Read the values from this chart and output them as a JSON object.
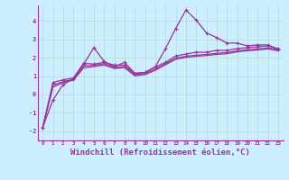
{
  "background_color": "#cceeff",
  "grid_color": "#aaddcc",
  "line_color": "#993399",
  "xlabel": "Windchill (Refroidissement éolien,°C)",
  "xlabel_fontsize": 6.5,
  "xtick_labels": [
    "0",
    "1",
    "2",
    "3",
    "4",
    "5",
    "6",
    "7",
    "8",
    "9",
    "10",
    "11",
    "12",
    "13",
    "14",
    "15",
    "16",
    "17",
    "18",
    "19",
    "20",
    "21",
    "22",
    "23"
  ],
  "ytick_vals": [
    -2,
    -1,
    0,
    1,
    2,
    3,
    4
  ],
  "ytick_labels": [
    "-2",
    "-1",
    "0",
    "1",
    "2",
    "3",
    "4"
  ],
  "ylim": [
    -2.5,
    4.85
  ],
  "xlim": [
    -0.5,
    23.5
  ],
  "series1": [
    [
      0,
      -1.8
    ],
    [
      1,
      -0.3
    ],
    [
      2,
      0.55
    ],
    [
      3,
      0.85
    ],
    [
      4,
      1.65
    ],
    [
      5,
      2.55
    ],
    [
      6,
      1.8
    ],
    [
      7,
      1.5
    ],
    [
      8,
      1.75
    ],
    [
      9,
      1.15
    ],
    [
      10,
      1.2
    ],
    [
      11,
      1.5
    ],
    [
      12,
      2.5
    ],
    [
      13,
      3.6
    ],
    [
      14,
      4.6
    ],
    [
      15,
      4.05
    ],
    [
      16,
      3.35
    ],
    [
      17,
      3.1
    ],
    [
      18,
      2.8
    ],
    [
      19,
      2.8
    ],
    [
      20,
      2.65
    ],
    [
      21,
      2.7
    ],
    [
      22,
      2.7
    ],
    [
      23,
      2.45
    ]
  ],
  "series2": [
    [
      0,
      -1.8
    ],
    [
      1,
      0.65
    ],
    [
      2,
      0.8
    ],
    [
      3,
      0.9
    ],
    [
      4,
      1.7
    ],
    [
      5,
      1.65
    ],
    [
      6,
      1.75
    ],
    [
      7,
      1.6
    ],
    [
      8,
      1.6
    ],
    [
      9,
      1.15
    ],
    [
      10,
      1.2
    ],
    [
      11,
      1.5
    ],
    [
      12,
      1.75
    ],
    [
      13,
      2.1
    ],
    [
      14,
      2.2
    ],
    [
      15,
      2.3
    ],
    [
      16,
      2.3
    ],
    [
      17,
      2.4
    ],
    [
      18,
      2.4
    ],
    [
      19,
      2.5
    ],
    [
      20,
      2.55
    ],
    [
      21,
      2.6
    ],
    [
      22,
      2.65
    ],
    [
      23,
      2.5
    ]
  ],
  "series3": [
    [
      0,
      -1.8
    ],
    [
      1,
      0.5
    ],
    [
      2,
      0.7
    ],
    [
      3,
      0.82
    ],
    [
      4,
      1.55
    ],
    [
      5,
      1.58
    ],
    [
      6,
      1.68
    ],
    [
      7,
      1.48
    ],
    [
      8,
      1.52
    ],
    [
      9,
      1.08
    ],
    [
      10,
      1.14
    ],
    [
      11,
      1.38
    ],
    [
      12,
      1.68
    ],
    [
      13,
      1.98
    ],
    [
      14,
      2.08
    ],
    [
      15,
      2.14
    ],
    [
      16,
      2.18
    ],
    [
      17,
      2.24
    ],
    [
      18,
      2.28
    ],
    [
      19,
      2.38
    ],
    [
      20,
      2.44
    ],
    [
      21,
      2.48
    ],
    [
      22,
      2.54
    ],
    [
      23,
      2.44
    ]
  ],
  "series4": [
    [
      0,
      -1.8
    ],
    [
      1,
      0.4
    ],
    [
      2,
      0.65
    ],
    [
      3,
      0.78
    ],
    [
      4,
      1.45
    ],
    [
      5,
      1.52
    ],
    [
      6,
      1.6
    ],
    [
      7,
      1.42
    ],
    [
      8,
      1.46
    ],
    [
      9,
      1.02
    ],
    [
      10,
      1.08
    ],
    [
      11,
      1.32
    ],
    [
      12,
      1.62
    ],
    [
      13,
      1.92
    ],
    [
      14,
      2.02
    ],
    [
      15,
      2.08
    ],
    [
      16,
      2.12
    ],
    [
      17,
      2.18
    ],
    [
      18,
      2.22
    ],
    [
      19,
      2.32
    ],
    [
      20,
      2.38
    ],
    [
      21,
      2.42
    ],
    [
      22,
      2.48
    ],
    [
      23,
      2.38
    ]
  ]
}
